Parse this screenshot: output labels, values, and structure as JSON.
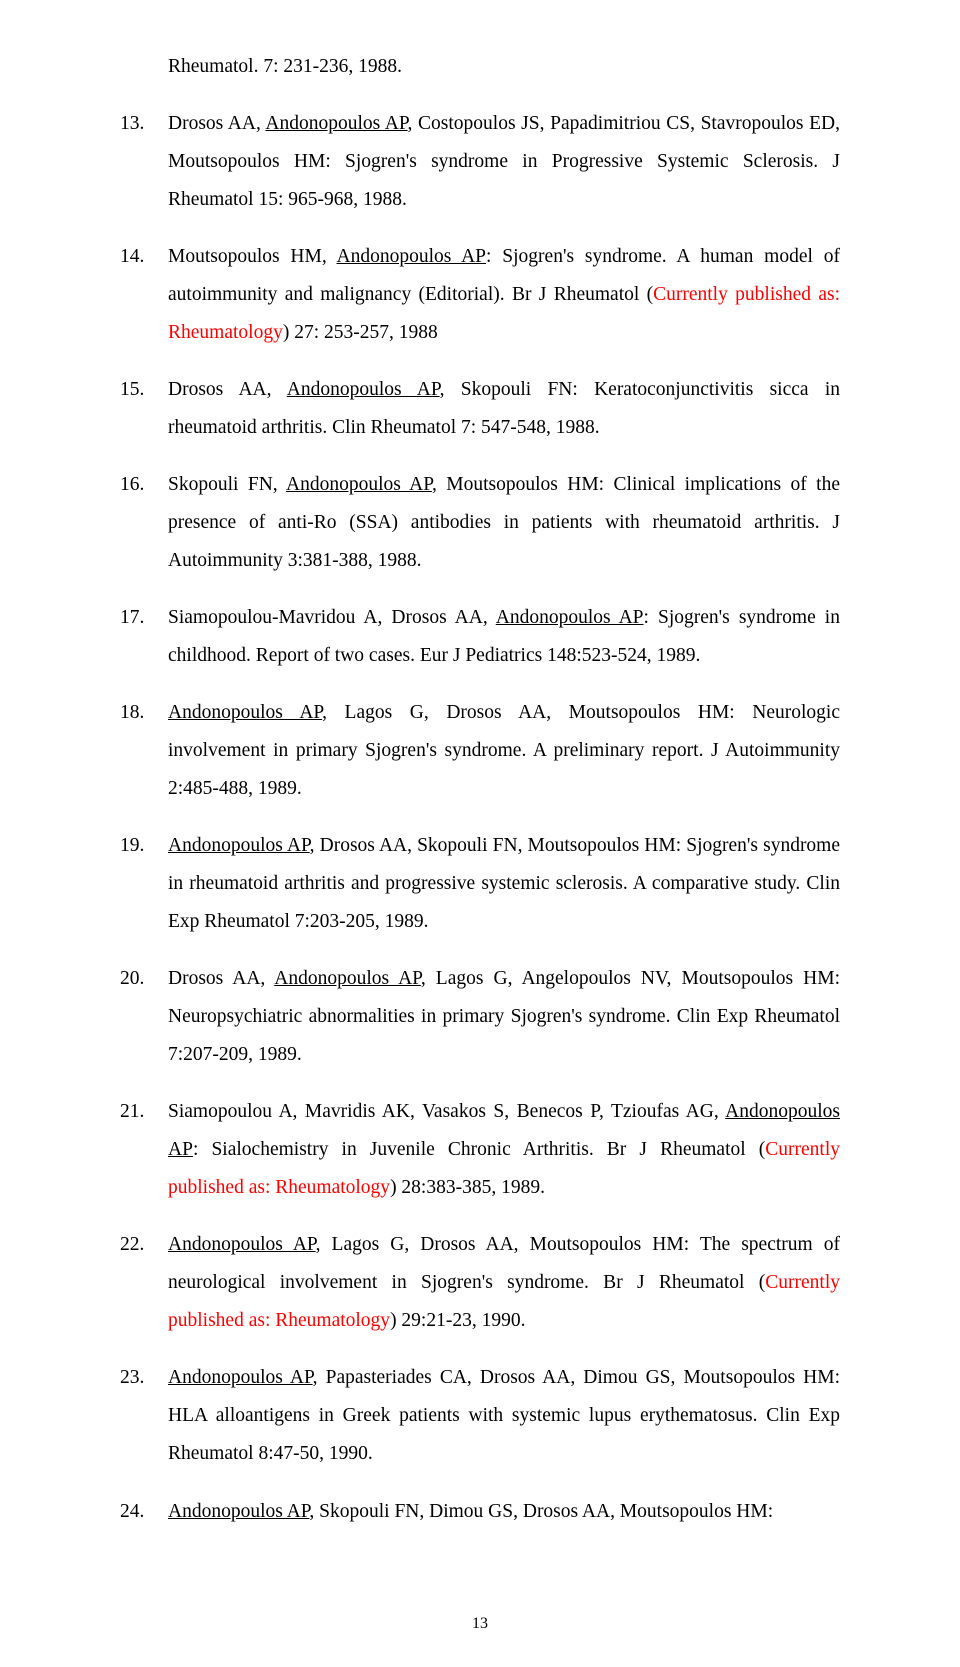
{
  "page_number": "13",
  "partial_top": {
    "text": "Rheumatol. 7: 231-236, 1988."
  },
  "references": [
    {
      "num": "13.",
      "segments": [
        {
          "t": "Drosos AA, "
        },
        {
          "t": "Andonopoulos AP",
          "u": true
        },
        {
          "t": ", Costopoulos JS, Papadimitriou CS, Stavropoulos ED, Moutsopoulos HM: Sjogren's syndrome in Progressive Systemic Sclerosis. J Rheumatol 15: 965-968, 1988."
        }
      ]
    },
    {
      "num": "14.",
      "segments": [
        {
          "t": "Moutsopoulos HM, "
        },
        {
          "t": "Andonopoulos AP",
          "u": true
        },
        {
          "t": ": Sjogren's syndrome. A human model of autoimmunity and malignancy (Editorial). Br J Rheumatol ("
        },
        {
          "t": "Currently published as: Rheumatology",
          "red": true
        },
        {
          "t": ") 27: 253-257, 1988"
        }
      ]
    },
    {
      "num": "15.",
      "segments": [
        {
          "t": "Drosos AA, "
        },
        {
          "t": "Andonopoulos AP",
          "u": true
        },
        {
          "t": ", Skopouli FN: Keratoconjunctivitis sicca in rheumatoid arthritis. Clin Rheumatol 7: 547-548, 1988."
        }
      ]
    },
    {
      "num": "16.",
      "segments": [
        {
          "t": "Skopouli FN, "
        },
        {
          "t": "Andonopoulos AP",
          "u": true
        },
        {
          "t": ", Moutsopoulos HM: Clinical implications of the presence of anti-Ro (SSA) antibodies in patients with rheumatoid arthritis. J Autoimmunity 3:381-388, 1988."
        }
      ]
    },
    {
      "num": "17.",
      "segments": [
        {
          "t": "Siamopoulou-Mavridou A, Drosos AA, "
        },
        {
          "t": "Andonopoulos AP",
          "u": true
        },
        {
          "t": ": Sjogren's syndrome in childhood. Report of two cases. Eur J Pediatrics 148:523-524, 1989."
        }
      ]
    },
    {
      "num": "18.",
      "segments": [
        {
          "t": "Andonopoulos AP",
          "u": true
        },
        {
          "t": ", Lagos G, Drosos AA, Moutsopoulos HM: Neurologic involvement in primary Sjogren's syndrome. A preliminary report. J Autoimmunity 2:485-488, 1989."
        }
      ]
    },
    {
      "num": "19.",
      "segments": [
        {
          "t": "Andonopoulos AP",
          "u": true
        },
        {
          "t": ", Drosos AA, Skopouli FN, Moutsopoulos HM: Sjogren's syndrome in rheumatoid arthritis and progressive systemic sclerosis. A comparative study. Clin Exp Rheumatol 7:203-205, 1989."
        }
      ]
    },
    {
      "num": "20.",
      "segments": [
        {
          "t": "Drosos AA, "
        },
        {
          "t": "Andonopoulos AP",
          "u": true
        },
        {
          "t": ", Lagos G, Angelopoulos NV, Moutsopoulos HM: Neuropsychiatric abnormalities in primary Sjogren's syndrome. Clin Exp Rheumatol 7:207-209, 1989."
        }
      ]
    },
    {
      "num": "21.",
      "segments": [
        {
          "t": "Siamopoulou A, Mavridis AK, Vasakos S, Benecos P, Tzioufas AG, "
        },
        {
          "t": "Andonopoulos AP",
          "u": true
        },
        {
          "t": ": Sialochemistry in Juvenile Chronic Arthritis. Br J Rheumatol ("
        },
        {
          "t": "Currently published as: Rheumatology",
          "red": true
        },
        {
          "t": ") 28:383-385, 1989."
        }
      ]
    },
    {
      "num": "22.",
      "segments": [
        {
          "t": "Andonopoulos AP",
          "u": true
        },
        {
          "t": ", Lagos G, Drosos AA, Moutsopoulos HM: The spectrum of neurological involvement in Sjogren's syndrome. Br J Rheumatol ("
        },
        {
          "t": "Currently published as: Rheumatology",
          "red": true
        },
        {
          "t": ") 29:21-23, 1990."
        }
      ]
    },
    {
      "num": "23.",
      "segments": [
        {
          "t": "Andonopoulos AP",
          "u": true
        },
        {
          "t": ", Papasteriades CA, Drosos AA, Dimou GS, Moutsopoulos HM: HLA alloantigens in Greek patients with systemic lupus erythematosus. Clin Exp Rheumatol 8:47-50, 1990."
        }
      ]
    },
    {
      "num": "24.",
      "segments": [
        {
          "t": "Andonopoulos AP",
          "u": true
        },
        {
          "t": ", Skopouli FN, Dimou GS, Drosos AA, Moutsopoulos HM:"
        }
      ]
    }
  ]
}
